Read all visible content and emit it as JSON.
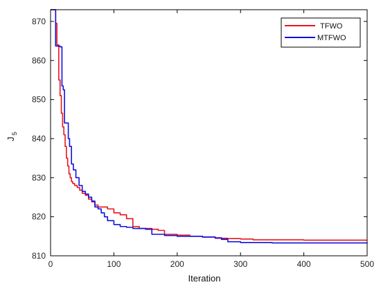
{
  "chart_data": {
    "type": "line",
    "title": "",
    "xlabel": "Iteration",
    "ylabel_main": "J",
    "ylabel_sub": "5",
    "xlim": [
      0,
      500
    ],
    "ylim": [
      810,
      873
    ],
    "x_ticks": [
      0,
      100,
      200,
      300,
      400,
      500
    ],
    "y_ticks": [
      810,
      820,
      830,
      840,
      850,
      860,
      870
    ],
    "grid": false,
    "legend_position": "top-right",
    "series": [
      {
        "name": "TFWO",
        "color": "#e8151b",
        "x": [
          0,
          5,
          8,
          10,
          13,
          15,
          17,
          19,
          21,
          23,
          25,
          27,
          29,
          31,
          33,
          35,
          38,
          42,
          46,
          50,
          55,
          60,
          65,
          70,
          75,
          80,
          90,
          100,
          110,
          120,
          130,
          140,
          150,
          160,
          170,
          180,
          200,
          220,
          240,
          260,
          280,
          300,
          320,
          350,
          400,
          450,
          500
        ],
        "y": [
          873,
          873,
          869.5,
          864,
          855,
          851,
          846.5,
          843,
          841,
          838,
          835,
          833,
          831,
          830,
          829,
          828.5,
          828,
          827.5,
          826.8,
          826,
          825.5,
          824.5,
          823.8,
          823,
          822.5,
          822.5,
          822,
          821,
          820.5,
          819.5,
          817.5,
          817,
          817,
          816.8,
          816.5,
          815.5,
          815.3,
          815,
          814.8,
          814.5,
          814.4,
          814.3,
          814.1,
          814.1,
          814,
          814,
          814
        ]
      },
      {
        "name": "MTFWO",
        "color": "#1010e0",
        "x": [
          0,
          5,
          8,
          12,
          15,
          18,
          20,
          22,
          25,
          28,
          30,
          33,
          36,
          40,
          45,
          50,
          55,
          60,
          65,
          70,
          75,
          80,
          85,
          90,
          100,
          110,
          120,
          130,
          140,
          150,
          160,
          180,
          200,
          220,
          240,
          260,
          270,
          280,
          300,
          350,
          400,
          450,
          500
        ],
        "y": [
          873,
          873,
          863.7,
          863.7,
          863.5,
          853.5,
          852.5,
          844,
          844,
          840,
          838,
          833.5,
          832,
          830,
          828,
          826.5,
          825.8,
          825,
          824,
          822.5,
          822,
          821,
          820,
          819,
          818,
          817.5,
          817.3,
          817,
          817,
          816.8,
          815.5,
          815.2,
          815,
          815,
          814.8,
          814.6,
          814.2,
          813.6,
          813.4,
          813.3,
          813.3,
          813.3,
          813.2
        ]
      }
    ]
  }
}
